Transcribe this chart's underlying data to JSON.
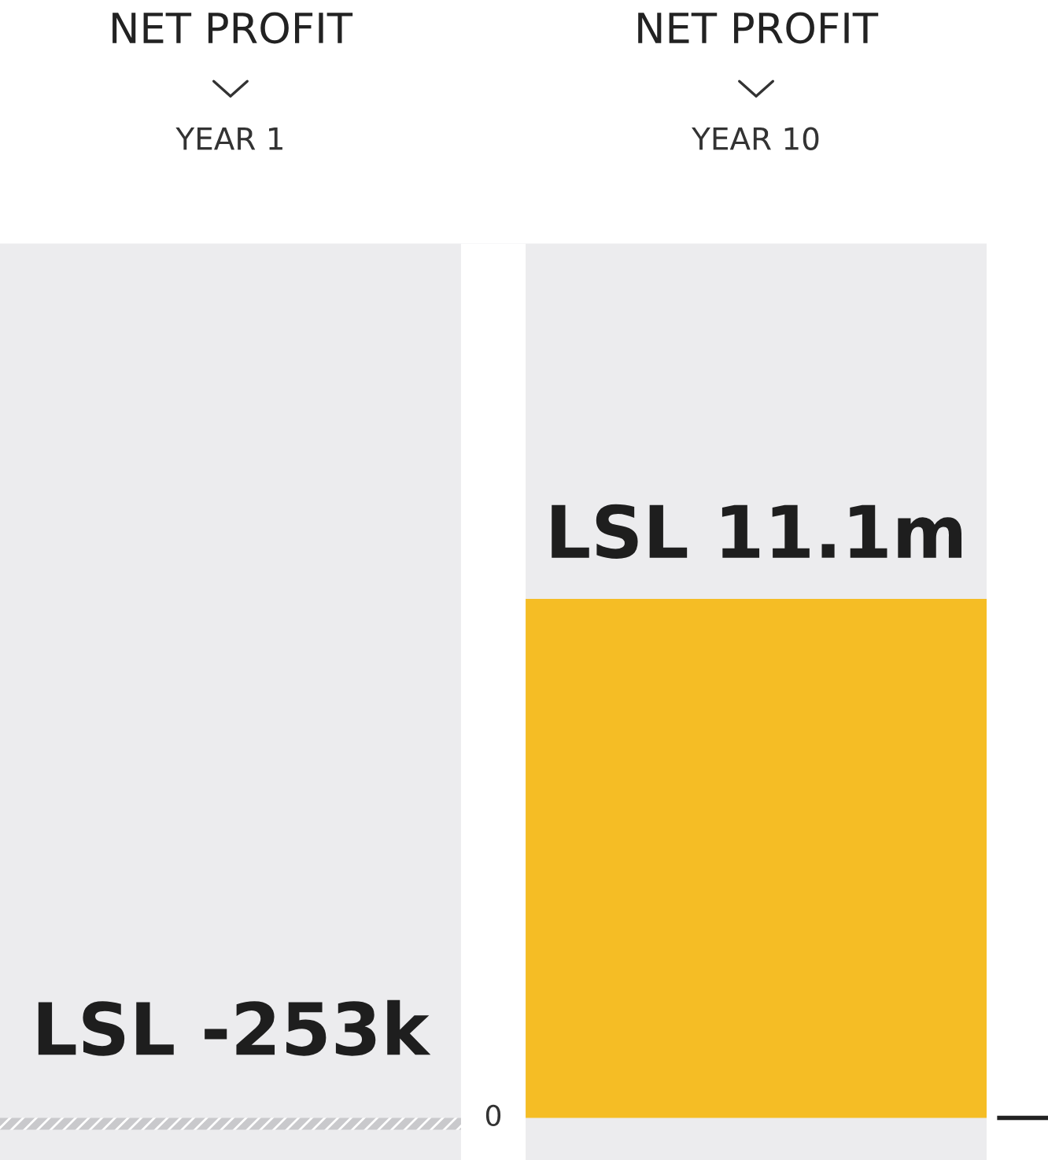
{
  "chart_data": {
    "type": "bar",
    "categories": [
      "YEAR 1",
      "YEAR 10"
    ],
    "values": [
      -253000,
      11100000
    ],
    "value_labels": [
      "LSL -253k",
      "LSL 11.1m"
    ],
    "colors": [
      "#c9c9cc",
      "#f5bd25"
    ],
    "ylim": [
      -900000,
      18700000
    ],
    "annotations": [
      "NET PROFIT",
      "NET PROFIT",
      "0"
    ]
  }
}
